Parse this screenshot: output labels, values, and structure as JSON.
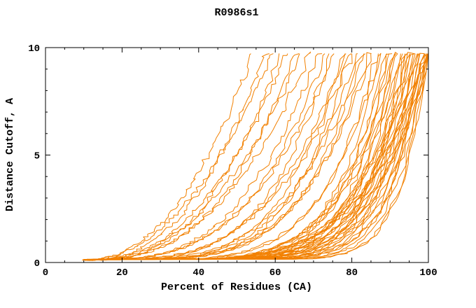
{
  "chart_data": {
    "type": "line",
    "title": "R0986s1",
    "xlabel": "Percent of Residues (CA)",
    "ylabel": "Distance Cutoff, A",
    "xlim": [
      0,
      100
    ],
    "ylim": [
      0,
      10
    ],
    "x_major_ticks": [
      0,
      20,
      40,
      60,
      80,
      100
    ],
    "x_minor_tick_step": 5,
    "y_major_ticks": [
      0,
      5,
      10
    ],
    "y_minor_tick_step": 1,
    "grid": false,
    "legend": "none",
    "background": "#FFFFFF",
    "axis_color": "#000000",
    "line_color": "#F28000",
    "curve_model": "Each curve is one predicted model: y = 10 * ((x - x_start)/(x_end - x_start))^shape plus small jitter; x = percent of CA residues fit, y = distance cutoff in Angstroms; curves rise from ~(10,0) and reach the top (10 A) at x_end",
    "curves_format": [
      "x_start",
      "x_end",
      "shape"
    ],
    "curves": [
      [
        10,
        55,
        2.2
      ],
      [
        11,
        58,
        2.4
      ],
      [
        10.5,
        60,
        2.1
      ],
      [
        12,
        62,
        2.6
      ],
      [
        11.5,
        64,
        2.3
      ],
      [
        10,
        66,
        2.8
      ],
      [
        12.5,
        68,
        2.2
      ],
      [
        11,
        70,
        2.5
      ],
      [
        13,
        72,
        2.9
      ],
      [
        10,
        74,
        3.2
      ],
      [
        12,
        75,
        3.8
      ],
      [
        11,
        76,
        3.0
      ],
      [
        13,
        78,
        4.2
      ],
      [
        10.5,
        79,
        3.5
      ],
      [
        12,
        80,
        4.6
      ],
      [
        11.5,
        81,
        3.3
      ],
      [
        13.5,
        82,
        4.0
      ],
      [
        10,
        83,
        4.8
      ],
      [
        12.5,
        84,
        3.6
      ],
      [
        11,
        85,
        4.4
      ],
      [
        14,
        86,
        3.9
      ],
      [
        10,
        87,
        5.5
      ],
      [
        11,
        88,
        6.5
      ],
      [
        12,
        88,
        5.0
      ],
      [
        10.5,
        89,
        7.0
      ],
      [
        13,
        90,
        5.8
      ],
      [
        11,
        90,
        8.0
      ],
      [
        12.5,
        91,
        6.2
      ],
      [
        10,
        91,
        9.0
      ],
      [
        14,
        92,
        5.4
      ],
      [
        11.5,
        92,
        7.5
      ],
      [
        13,
        93,
        6.8
      ],
      [
        10,
        93,
        10.0
      ],
      [
        12,
        94,
        5.2
      ],
      [
        11,
        94,
        8.5
      ],
      [
        14.5,
        95,
        6.0
      ],
      [
        10.5,
        95,
        9.5
      ],
      [
        13,
        95,
        7.2
      ],
      [
        12,
        96,
        5.6
      ],
      [
        11,
        96,
        10.5
      ],
      [
        15,
        96,
        6.6
      ],
      [
        10,
        97,
        7.8
      ],
      [
        13.5,
        97,
        5.3
      ],
      [
        12,
        97,
        9.0
      ],
      [
        11.5,
        98,
        6.4
      ],
      [
        14,
        98,
        11.0
      ],
      [
        10.5,
        98,
        5.8
      ],
      [
        12.5,
        99,
        7.4
      ],
      [
        11,
        99,
        10.0
      ],
      [
        13,
        99,
        6.0
      ],
      [
        15,
        99,
        8.8
      ],
      [
        10,
        100,
        5.5
      ],
      [
        12,
        100,
        9.4
      ],
      [
        11.5,
        100,
        6.8
      ],
      [
        14,
        100,
        12.0
      ],
      [
        10.5,
        100,
        7.6
      ],
      [
        13,
        100,
        5.2
      ],
      [
        11,
        100,
        8.2
      ],
      [
        12.5,
        100,
        10.8
      ],
      [
        16,
        100,
        6.2
      ],
      [
        10,
        100,
        12.5
      ]
    ],
    "jitter_seed": 986
  }
}
